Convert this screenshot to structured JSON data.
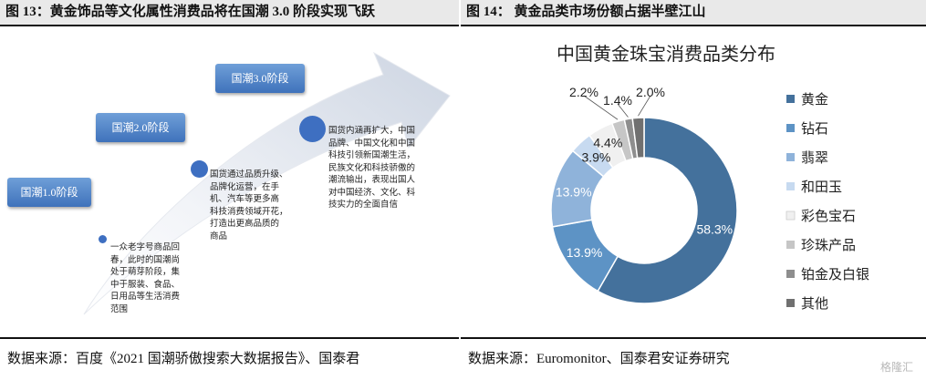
{
  "left": {
    "title": "图 13：黄金饰品等文化属性消费品将在国潮 3.0 阶段实现飞跃",
    "stages": [
      {
        "label": "国潮1.0阶段",
        "text": [
          "一众老字号商品回",
          "春，此时的国潮尚",
          "处于萌芽阶段，集",
          "中于服装、食品、",
          "日用品等生活消费",
          "范围"
        ]
      },
      {
        "label": "国潮2.0阶段",
        "text": [
          "国货通过品质升级、",
          "品牌化运营，在手",
          "机、汽车等更多高",
          "科技消费领域开花，",
          "打造出更高品质的",
          "商品"
        ]
      },
      {
        "label": "国潮3.0阶段",
        "text": [
          "国货内涵再扩大，中国",
          "品牌、中国文化和中国",
          "科技引领新国潮生活，",
          "民族文化和科技骄傲的",
          "潮流输出，表现出国人",
          "对中国经济、文化、科",
          "技实力的全面自信"
        ]
      }
    ],
    "source": "数据来源：百度《2021 国潮骄傲搜索大数据报告》、国泰君"
  },
  "right": {
    "title": "图 14：  黄金品类市场份额占据半壁江山",
    "source": "数据来源：Euromonitor、国泰君安证券研究"
  },
  "chart_data": {
    "type": "pie",
    "donut": true,
    "title": "中国黄金珠宝消费品类分布",
    "legend_position": "right",
    "series": [
      {
        "name": "黄金",
        "value": 58.3,
        "label": "58.3%",
        "color": "#44719c"
      },
      {
        "name": "钻石",
        "value": 13.9,
        "label": "13.9%",
        "color": "#5d93c5"
      },
      {
        "name": "翡翠",
        "value": 13.9,
        "label": "13.9%",
        "color": "#8fb3da"
      },
      {
        "name": "和田玉",
        "value": 3.9,
        "label": "3.9%",
        "color": "#c7daf0"
      },
      {
        "name": "彩色宝石",
        "value": 4.4,
        "label": "4.4%",
        "color": "#f0f0f0"
      },
      {
        "name": "珍珠产品",
        "value": 2.2,
        "label": "2.2%",
        "color": "#c6c6c6"
      },
      {
        "name": "铂金及白银",
        "value": 1.4,
        "label": "1.4%",
        "color": "#8e8e8e"
      },
      {
        "name": "其他",
        "value": 2.0,
        "label": "2.0%",
        "color": "#707070"
      }
    ]
  },
  "watermark": "格隆汇"
}
